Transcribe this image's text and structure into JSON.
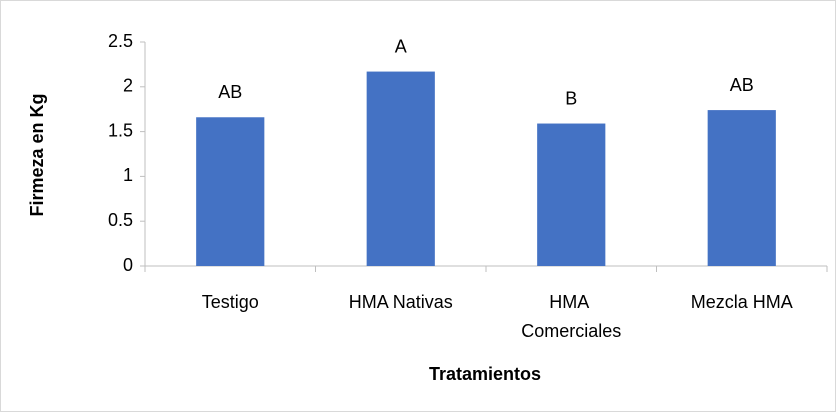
{
  "chart_data": {
    "type": "bar",
    "xlabel": "Tratamientos",
    "ylabel": "Firmeza en Kg",
    "categories": [
      "Testigo",
      "HMA Nativas",
      "HMA Comerciales",
      "Mezcla HMA"
    ],
    "values": [
      1.66,
      2.17,
      1.59,
      1.74
    ],
    "annotations": [
      "AB",
      "A",
      "B",
      "AB"
    ],
    "color": "#4472c4",
    "ylim": [
      0,
      2.5
    ],
    "yticks": [
      0,
      0.5,
      1,
      1.5,
      2,
      2.5
    ],
    "grid": false
  }
}
